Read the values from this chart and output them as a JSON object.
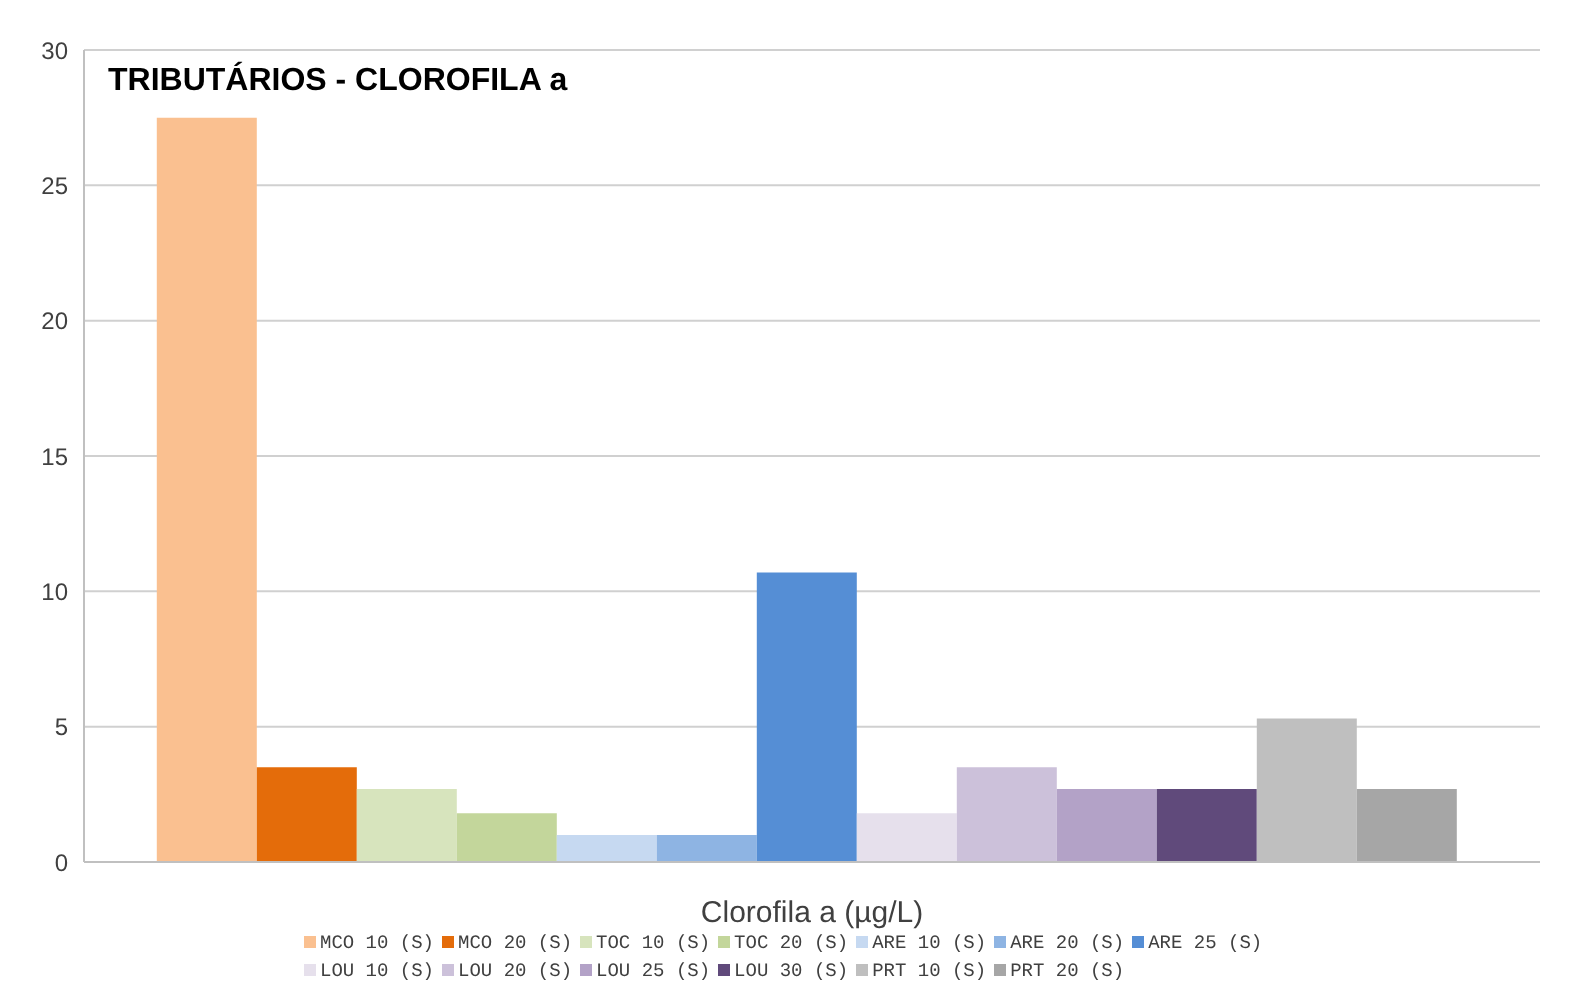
{
  "chart_data": {
    "type": "bar",
    "title": "TRIBUTÁRIOS - CLOROFILA a",
    "xlabel": "Clorofila a (µg/L)",
    "categories": [
      null
    ],
    "series": [
      {
        "name": "MCO 10 (S)",
        "color": "#fac090",
        "values": [
          27.5
        ]
      },
      {
        "name": "MCO 20 (S)",
        "color": "#e46c0a",
        "values": [
          3.5
        ]
      },
      {
        "name": "TOC 10 (S)",
        "color": "#d7e4bd",
        "values": [
          2.7
        ]
      },
      {
        "name": "TOC 20 (S)",
        "color": "#c3d69b",
        "values": [
          1.8
        ]
      },
      {
        "name": "ARE 10 (S)",
        "color": "#c6d9f1",
        "values": [
          1.0
        ]
      },
      {
        "name": "ARE 20 (S)",
        "color": "#8eb4e3",
        "values": [
          1.0
        ]
      },
      {
        "name": "ARE 25 (S)",
        "color": "#558ed5",
        "values": [
          10.7
        ]
      },
      {
        "name": "LOU 10 (S)",
        "color": "#e6e0ec",
        "values": [
          1.8
        ]
      },
      {
        "name": "LOU 20 (S)",
        "color": "#ccc1da",
        "values": [
          3.5
        ]
      },
      {
        "name": "LOU 25 (S)",
        "color": "#b3a2c7",
        "values": [
          2.7
        ]
      },
      {
        "name": "LOU 30 (S)",
        "color": "#604a7b",
        "values": [
          2.7
        ]
      },
      {
        "name": "PRT 10 (S)",
        "color": "#bfbfbf",
        "values": [
          5.3
        ]
      },
      {
        "name": "PRT 20 (S)",
        "color": "#a6a6a6",
        "values": [
          2.7
        ]
      }
    ],
    "ylim": [
      0,
      30
    ],
    "yticks": [
      0,
      5,
      10,
      15,
      20,
      25,
      30
    ],
    "grid": "y",
    "legend": "bottom"
  }
}
